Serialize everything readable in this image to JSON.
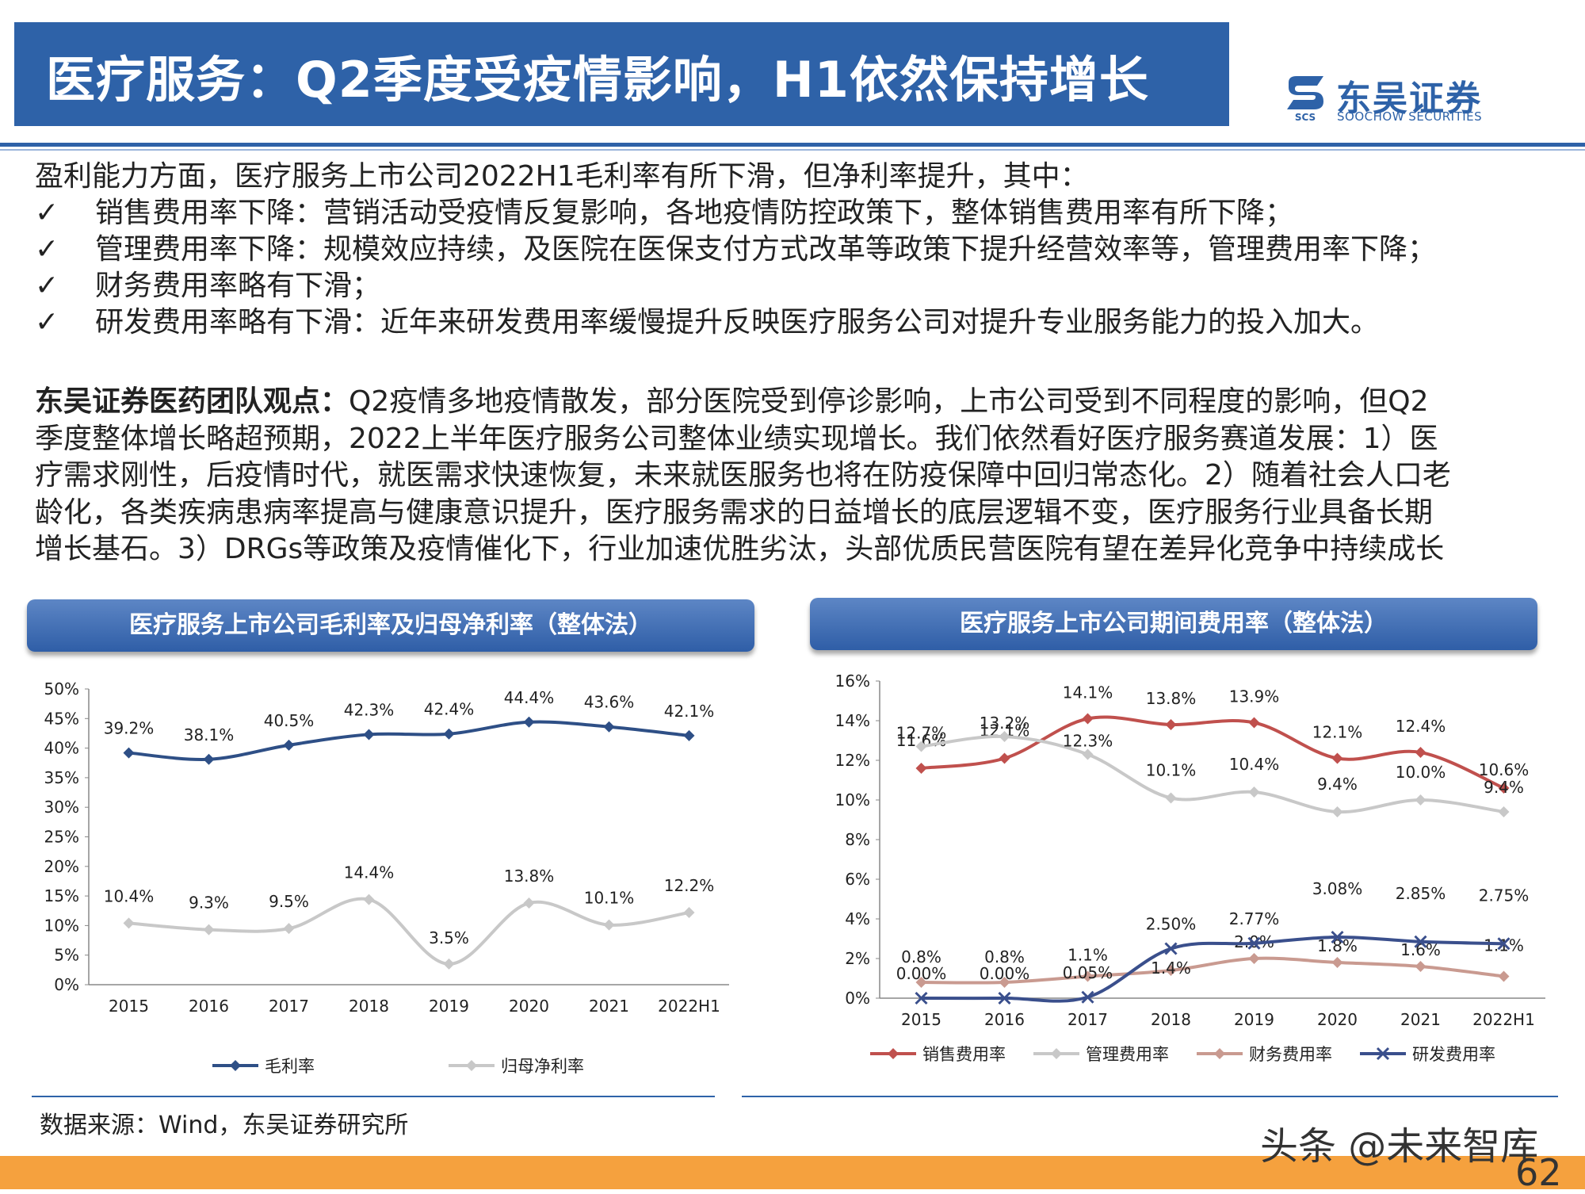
{
  "header": {
    "title": "医疗服务：Q2季度受疫情影响，H1依然保持增长"
  },
  "logo": {
    "cn": "东吴证券",
    "en": "SOOCHOW SECURITIES",
    "mark": "SCS"
  },
  "body": {
    "intro": "盈利能力方面，医疗服务上市公司2022H1毛利率有所下滑，但净利率提升，其中：",
    "check_symbol": "✓",
    "bullets": [
      "销售费用率下降：营销活动受疫情反复影响，各地疫情防控政策下，整体销售费用率有所下降；",
      "管理费用率下降：规模效应持续，及医院在医保支付方式改革等政策下提升经营效率等，管理费用率下降；",
      "财务费用率略有下滑；",
      "研发费用率略有下滑：近年来研发费用率缓慢提升反映医疗服务公司对提升专业服务能力的投入加大。"
    ],
    "view_label": "东吴证券医药团队观点：",
    "view_lines": [
      "Q2疫情多地疫情散发，部分医院受到停诊影响，上市公司受到不同程度的影响，但Q2",
      "季度整体增长略超预期，2022上半年医疗服务公司整体业绩实现增长。我们依然看好医疗服务赛道发展：1）医",
      "疗需求刚性，后疫情时代，就医需求快速恢复，未来就医服务也将在防疫保障中回归常态化。2）随着社会人口老",
      "龄化，各类疾病患病率提高与健康意识提升，医疗服务需求的日益增长的底层逻辑不变，医疗服务行业具备长期",
      "增长基石。3）DRGs等政策及疫情催化下，行业加速优胜劣汰，头部优质民营医院有望在差异化竞争中持续成长"
    ]
  },
  "source": "数据来源：Wind，东吴证券研究所",
  "watermark": "头条 @未来智库",
  "page_number": "62",
  "chart_data": [
    {
      "type": "line",
      "title": "医疗服务上市公司毛利率及归母净利率（整体法）",
      "categories": [
        "2015",
        "2016",
        "2017",
        "2018",
        "2019",
        "2020",
        "2021",
        "2022H1"
      ],
      "ylim": [
        0,
        50
      ],
      "y_ticks": [
        "0%",
        "5%",
        "10%",
        "15%",
        "20%",
        "25%",
        "30%",
        "35%",
        "40%",
        "45%",
        "50%"
      ],
      "grid": false,
      "legend_position": "bottom",
      "series": [
        {
          "name": "毛利率",
          "color": "#2e4f86",
          "marker": "diamond",
          "values": [
            39.2,
            38.1,
            40.5,
            42.3,
            42.4,
            44.4,
            43.6,
            42.1
          ],
          "labels": [
            "39.2%",
            "38.1%",
            "40.5%",
            "42.3%",
            "42.4%",
            "44.4%",
            "43.6%",
            "42.1%"
          ]
        },
        {
          "name": "归母净利率",
          "color": "#c8c8c8",
          "marker": "diamond",
          "values": [
            10.4,
            9.3,
            9.5,
            14.4,
            3.5,
            13.8,
            10.1,
            12.2
          ],
          "labels": [
            "10.4%",
            "9.3%",
            "9.5%",
            "14.4%",
            "3.5%",
            "13.8%",
            "10.1%",
            "12.2%"
          ]
        }
      ]
    },
    {
      "type": "line",
      "title": "医疗服务上市公司期间费用率（整体法）",
      "categories": [
        "2015",
        "2016",
        "2017",
        "2018",
        "2019",
        "2020",
        "2021",
        "2022H1"
      ],
      "ylim": [
        0,
        16
      ],
      "y_ticks": [
        "0%",
        "2%",
        "4%",
        "6%",
        "8%",
        "10%",
        "12%",
        "14%",
        "16%"
      ],
      "grid": false,
      "legend_position": "bottom",
      "series": [
        {
          "name": "销售费用率",
          "color": "#c0504d",
          "marker": "diamond",
          "values": [
            11.6,
            12.1,
            14.1,
            13.8,
            13.9,
            12.1,
            12.4,
            10.6
          ],
          "labels": [
            "11.6%",
            "12.1%",
            "14.1%",
            "13.8%",
            "13.9%",
            "12.1%",
            "12.4%",
            "10.6%"
          ]
        },
        {
          "name": "管理费用率",
          "color": "#c8c8c8",
          "marker": "diamond",
          "values": [
            12.7,
            13.2,
            12.3,
            10.1,
            10.4,
            9.4,
            10.0,
            9.4
          ],
          "labels": [
            "12.7%",
            "13.2%",
            "12.3%",
            "10.1%",
            "10.4%",
            "9.4%",
            "10.0%",
            "9.4%"
          ]
        },
        {
          "name": "财务费用率",
          "color": "#c99a90",
          "marker": "diamond",
          "values": [
            0.8,
            0.8,
            1.1,
            1.4,
            2.0,
            1.8,
            1.6,
            1.1
          ],
          "labels": [
            "0.8%",
            "0.8%",
            "1.1%",
            "1.4%",
            "2.0%",
            "1.8%",
            "1.6%",
            "1.1%"
          ]
        },
        {
          "name": "研发费用率",
          "color": "#3a4f8c",
          "marker": "x",
          "values": [
            0.0,
            0.0,
            0.05,
            2.5,
            2.77,
            3.08,
            2.85,
            2.75
          ],
          "labels": [
            "0.00%",
            "0.00%",
            "0.05%",
            "2.50%",
            "2.77%",
            "3.08%",
            "2.85%",
            "2.75%"
          ]
        }
      ]
    }
  ]
}
